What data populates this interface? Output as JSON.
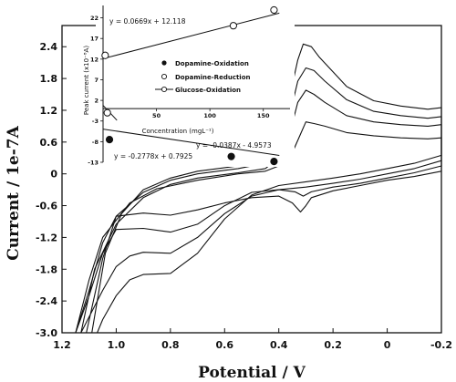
{
  "chart_data": [
    {
      "type": "line",
      "xlabel": "Potential / V",
      "ylabel": "Current / 1e-7A",
      "xlim": [
        1.2,
        -0.2
      ],
      "ylim": [
        -3.0,
        2.8
      ],
      "x_ticks": [
        "1.2",
        "1.0",
        "0.8",
        "0.6",
        "0.4",
        "0.2",
        "0",
        "-0.2"
      ],
      "y_ticks": [
        "2.4",
        "1.8",
        "1.2",
        "0.6",
        "0",
        "-0.6",
        "-1.2",
        "-1.8",
        "-2.4",
        "-3.0"
      ],
      "series": [
        {
          "forward": [
            [
              1.15,
              -3.0
            ],
            [
              1.1,
              -2.0
            ],
            [
              1.05,
              -1.2
            ],
            [
              0.95,
              -0.55
            ],
            [
              0.85,
              -0.28
            ],
            [
              0.7,
              -0.12
            ],
            [
              0.55,
              0.0
            ],
            [
              0.45,
              0.05
            ],
            [
              0.4,
              0.15
            ],
            [
              0.35,
              0.4
            ],
            [
              0.32,
              0.75
            ],
            [
              0.3,
              0.98
            ],
            [
              0.27,
              0.95
            ],
            [
              0.23,
              0.9
            ],
            [
              0.15,
              0.78
            ],
            [
              0.05,
              0.72
            ],
            [
              -0.05,
              0.68
            ],
            [
              -0.15,
              0.66
            ],
            [
              -0.2,
              0.68
            ]
          ],
          "reverse": [
            [
              -0.2,
              0.05
            ],
            [
              -0.1,
              -0.05
            ],
            [
              0.0,
              -0.12
            ],
            [
              0.1,
              -0.22
            ],
            [
              0.2,
              -0.32
            ],
            [
              0.28,
              -0.45
            ],
            [
              0.3,
              -0.6
            ],
            [
              0.32,
              -0.72
            ],
            [
              0.35,
              -0.55
            ],
            [
              0.4,
              -0.42
            ],
            [
              0.5,
              -0.45
            ],
            [
              0.6,
              -0.55
            ],
            [
              0.7,
              -0.68
            ],
            [
              0.8,
              -0.78
            ],
            [
              0.9,
              -0.74
            ],
            [
              1.0,
              -0.8
            ],
            [
              1.05,
              -1.3
            ],
            [
              1.1,
              -2.2
            ],
            [
              1.15,
              -3.0
            ]
          ]
        },
        {
          "forward": [
            [
              1.13,
              -3.0
            ],
            [
              1.08,
              -1.8
            ],
            [
              1.0,
              -0.95
            ],
            [
              0.9,
              -0.45
            ],
            [
              0.8,
              -0.2
            ],
            [
              0.7,
              -0.08
            ],
            [
              0.55,
              0.02
            ],
            [
              0.45,
              0.1
            ],
            [
              0.4,
              0.3
            ],
            [
              0.36,
              0.75
            ],
            [
              0.33,
              1.35
            ],
            [
              0.3,
              1.58
            ],
            [
              0.27,
              1.5
            ],
            [
              0.23,
              1.35
            ],
            [
              0.15,
              1.1
            ],
            [
              0.05,
              0.98
            ],
            [
              -0.05,
              0.93
            ],
            [
              -0.15,
              0.9
            ],
            [
              -0.2,
              0.93
            ]
          ],
          "reverse": [
            [
              -0.2,
              0.15
            ],
            [
              -0.1,
              0.02
            ],
            [
              0.0,
              -0.08
            ],
            [
              0.1,
              -0.18
            ],
            [
              0.2,
              -0.25
            ],
            [
              0.28,
              -0.34
            ],
            [
              0.31,
              -0.42
            ],
            [
              0.34,
              -0.34
            ],
            [
              0.4,
              -0.3
            ],
            [
              0.5,
              -0.35
            ],
            [
              0.6,
              -0.6
            ],
            [
              0.7,
              -0.95
            ],
            [
              0.8,
              -1.1
            ],
            [
              0.9,
              -1.03
            ],
            [
              1.0,
              -1.05
            ],
            [
              1.05,
              -1.5
            ],
            [
              1.1,
              -2.3
            ],
            [
              1.15,
              -3.0
            ]
          ]
        },
        {
          "forward": [
            [
              1.11,
              -3.0
            ],
            [
              1.05,
              -1.6
            ],
            [
              1.0,
              -0.8
            ],
            [
              0.9,
              -0.35
            ],
            [
              0.8,
              -0.12
            ],
            [
              0.7,
              0.0
            ],
            [
              0.55,
              0.1
            ],
            [
              0.45,
              0.2
            ],
            [
              0.4,
              0.5
            ],
            [
              0.36,
              1.1
            ],
            [
              0.33,
              1.75
            ],
            [
              0.3,
              2.0
            ],
            [
              0.27,
              1.95
            ],
            [
              0.23,
              1.75
            ],
            [
              0.15,
              1.4
            ],
            [
              0.05,
              1.18
            ],
            [
              -0.05,
              1.1
            ],
            [
              -0.15,
              1.05
            ],
            [
              -0.2,
              1.08
            ]
          ],
          "reverse": [
            [
              -0.2,
              0.25
            ],
            [
              -0.1,
              0.1
            ],
            [
              0.0,
              0.0
            ],
            [
              0.1,
              -0.1
            ],
            [
              0.2,
              -0.18
            ],
            [
              0.3,
              -0.25
            ],
            [
              0.4,
              -0.3
            ],
            [
              0.5,
              -0.42
            ],
            [
              0.6,
              -0.75
            ],
            [
              0.7,
              -1.2
            ],
            [
              0.8,
              -1.5
            ],
            [
              0.9,
              -1.48
            ],
            [
              0.95,
              -1.55
            ],
            [
              1.0,
              -1.75
            ],
            [
              1.05,
              -2.2
            ],
            [
              1.1,
              -2.7
            ],
            [
              1.13,
              -3.0
            ]
          ]
        },
        {
          "forward": [
            [
              1.09,
              -3.0
            ],
            [
              1.04,
              -1.5
            ],
            [
              0.98,
              -0.75
            ],
            [
              0.9,
              -0.3
            ],
            [
              0.8,
              -0.08
            ],
            [
              0.7,
              0.05
            ],
            [
              0.55,
              0.15
            ],
            [
              0.45,
              0.3
            ],
            [
              0.4,
              0.7
            ],
            [
              0.36,
              1.45
            ],
            [
              0.33,
              2.15
            ],
            [
              0.31,
              2.45
            ],
            [
              0.28,
              2.4
            ],
            [
              0.25,
              2.2
            ],
            [
              0.15,
              1.65
            ],
            [
              0.05,
              1.38
            ],
            [
              -0.05,
              1.28
            ],
            [
              -0.15,
              1.22
            ],
            [
              -0.2,
              1.25
            ]
          ],
          "reverse": [
            [
              -0.2,
              0.35
            ],
            [
              -0.1,
              0.2
            ],
            [
              0.0,
              0.1
            ],
            [
              0.1,
              0.0
            ],
            [
              0.2,
              -0.08
            ],
            [
              0.3,
              -0.15
            ],
            [
              0.4,
              -0.22
            ],
            [
              0.5,
              -0.4
            ],
            [
              0.6,
              -0.85
            ],
            [
              0.7,
              -1.5
            ],
            [
              0.8,
              -1.88
            ],
            [
              0.9,
              -1.9
            ],
            [
              0.95,
              -2.0
            ],
            [
              1.0,
              -2.3
            ],
            [
              1.05,
              -2.75
            ],
            [
              1.07,
              -3.0
            ]
          ]
        }
      ]
    },
    {
      "type": "scatter",
      "ylabel": "Peak current (x10⁻⁸A)",
      "xlabel": "Concentration (mgL⁻¹)",
      "xlim": [
        0,
        175
      ],
      "ylim": [
        -13,
        25
      ],
      "x_ticks": [
        "50",
        "100",
        "150"
      ],
      "y_ticks": [
        "22",
        "17",
        "12",
        "7",
        "2",
        "-3",
        "-8",
        "-13"
      ],
      "legend": [
        "Dopamine-Oxidation",
        "Dopamine-Reduction",
        "Glucose-Oxidation"
      ],
      "series": [
        {
          "name": "Dopamine-Oxidation",
          "x": [
            6,
            120,
            160
          ],
          "y": [
            -7.5,
            -11.6,
            -12.8
          ],
          "equation": "y = -0.0387x - 4.9573"
        },
        {
          "name": "Dopamine-Reduction",
          "x": [
            4
          ],
          "y": [
            -1.0
          ],
          "equation": "y = -0.2778x + 0.7925"
        },
        {
          "name": "Glucose-Oxidation",
          "x": [
            2,
            122,
            160
          ],
          "y": [
            12.9,
            20.1,
            23.9
          ],
          "equation": "y = 0.0669x + 12.118"
        }
      ]
    }
  ]
}
